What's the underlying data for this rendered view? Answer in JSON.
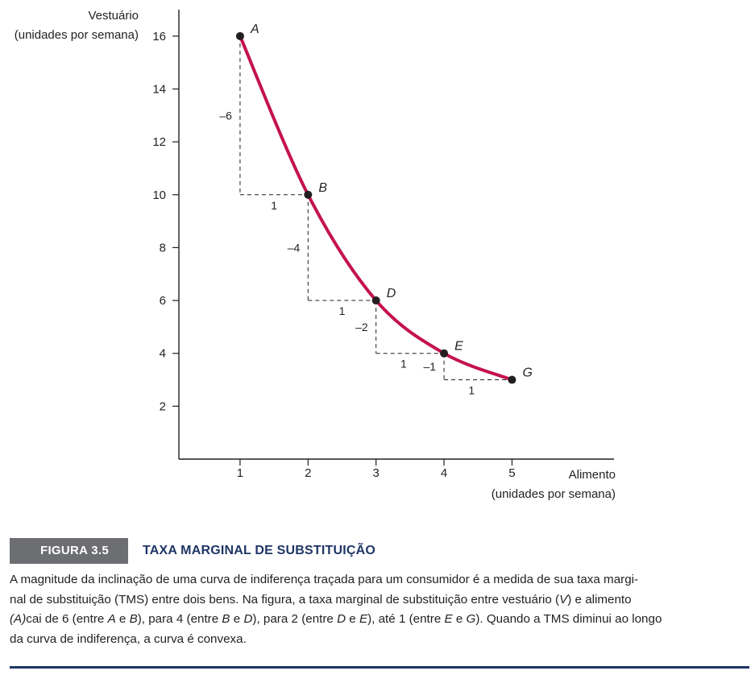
{
  "chart_data": {
    "type": "line",
    "title": "",
    "ylabel": [
      "Vestuário",
      "(unidades por semana)"
    ],
    "xlabel": [
      "Alimento",
      "(unidades por semana)"
    ],
    "x_ticks": [
      1,
      2,
      3,
      4,
      5
    ],
    "y_ticks": [
      2,
      4,
      6,
      8,
      10,
      12,
      14,
      16
    ],
    "xlim": [
      0.1,
      6.5
    ],
    "ylim": [
      0,
      17
    ],
    "grid": false,
    "curve_color": "#c4124f",
    "points": [
      {
        "label": "A",
        "x": 1,
        "y": 16
      },
      {
        "label": "B",
        "x": 2,
        "y": 10
      },
      {
        "label": "D",
        "x": 3,
        "y": 6
      },
      {
        "label": "E",
        "x": 4,
        "y": 4
      },
      {
        "label": "G",
        "x": 5,
        "y": 3
      }
    ],
    "steps": [
      {
        "from": "A",
        "to": "B",
        "delta_y": "–6",
        "delta_x": "1"
      },
      {
        "from": "B",
        "to": "D",
        "delta_y": "–4",
        "delta_x": "1"
      },
      {
        "from": "D",
        "to": "E",
        "delta_y": "–2",
        "delta_x": "1"
      },
      {
        "from": "E",
        "to": "G",
        "delta_y": "–1",
        "delta_x": "1"
      }
    ]
  },
  "caption": {
    "figure_number": "FIGURA 3.5",
    "title": "TAXA MARGINAL DE SUBSTITUIÇÃO",
    "text_1": "A magnitude da inclinação de uma curva de indiferença traçada para um consumidor é a medida de sua taxa margi-",
    "text_2a": "nal de substituição (TMS) entre dois bens. Na figura, a taxa marginal de substituição entre vestuário (",
    "text_2v": "V",
    "text_2b": ") e alimento",
    "text_3a_italic": "(A)",
    "text_3b": "cai de 6 (entre ",
    "text_3A": "A",
    "text_3c": " e ",
    "text_3B": "B",
    "text_3d": "), para 4 (entre ",
    "text_3B2": "B",
    "text_3e": " e ",
    "text_3D": "D",
    "text_3f": "), para 2 (entre ",
    "text_3D2": "D",
    "text_3g": " e ",
    "text_3E": "E",
    "text_3h": "), até 1 (entre ",
    "text_3E2": "E",
    "text_3i": " e ",
    "text_3G": "G",
    "text_3j": "). Quando a TMS diminui ao longo",
    "text_4": "da curva de indiferença, a curva é convexa."
  }
}
